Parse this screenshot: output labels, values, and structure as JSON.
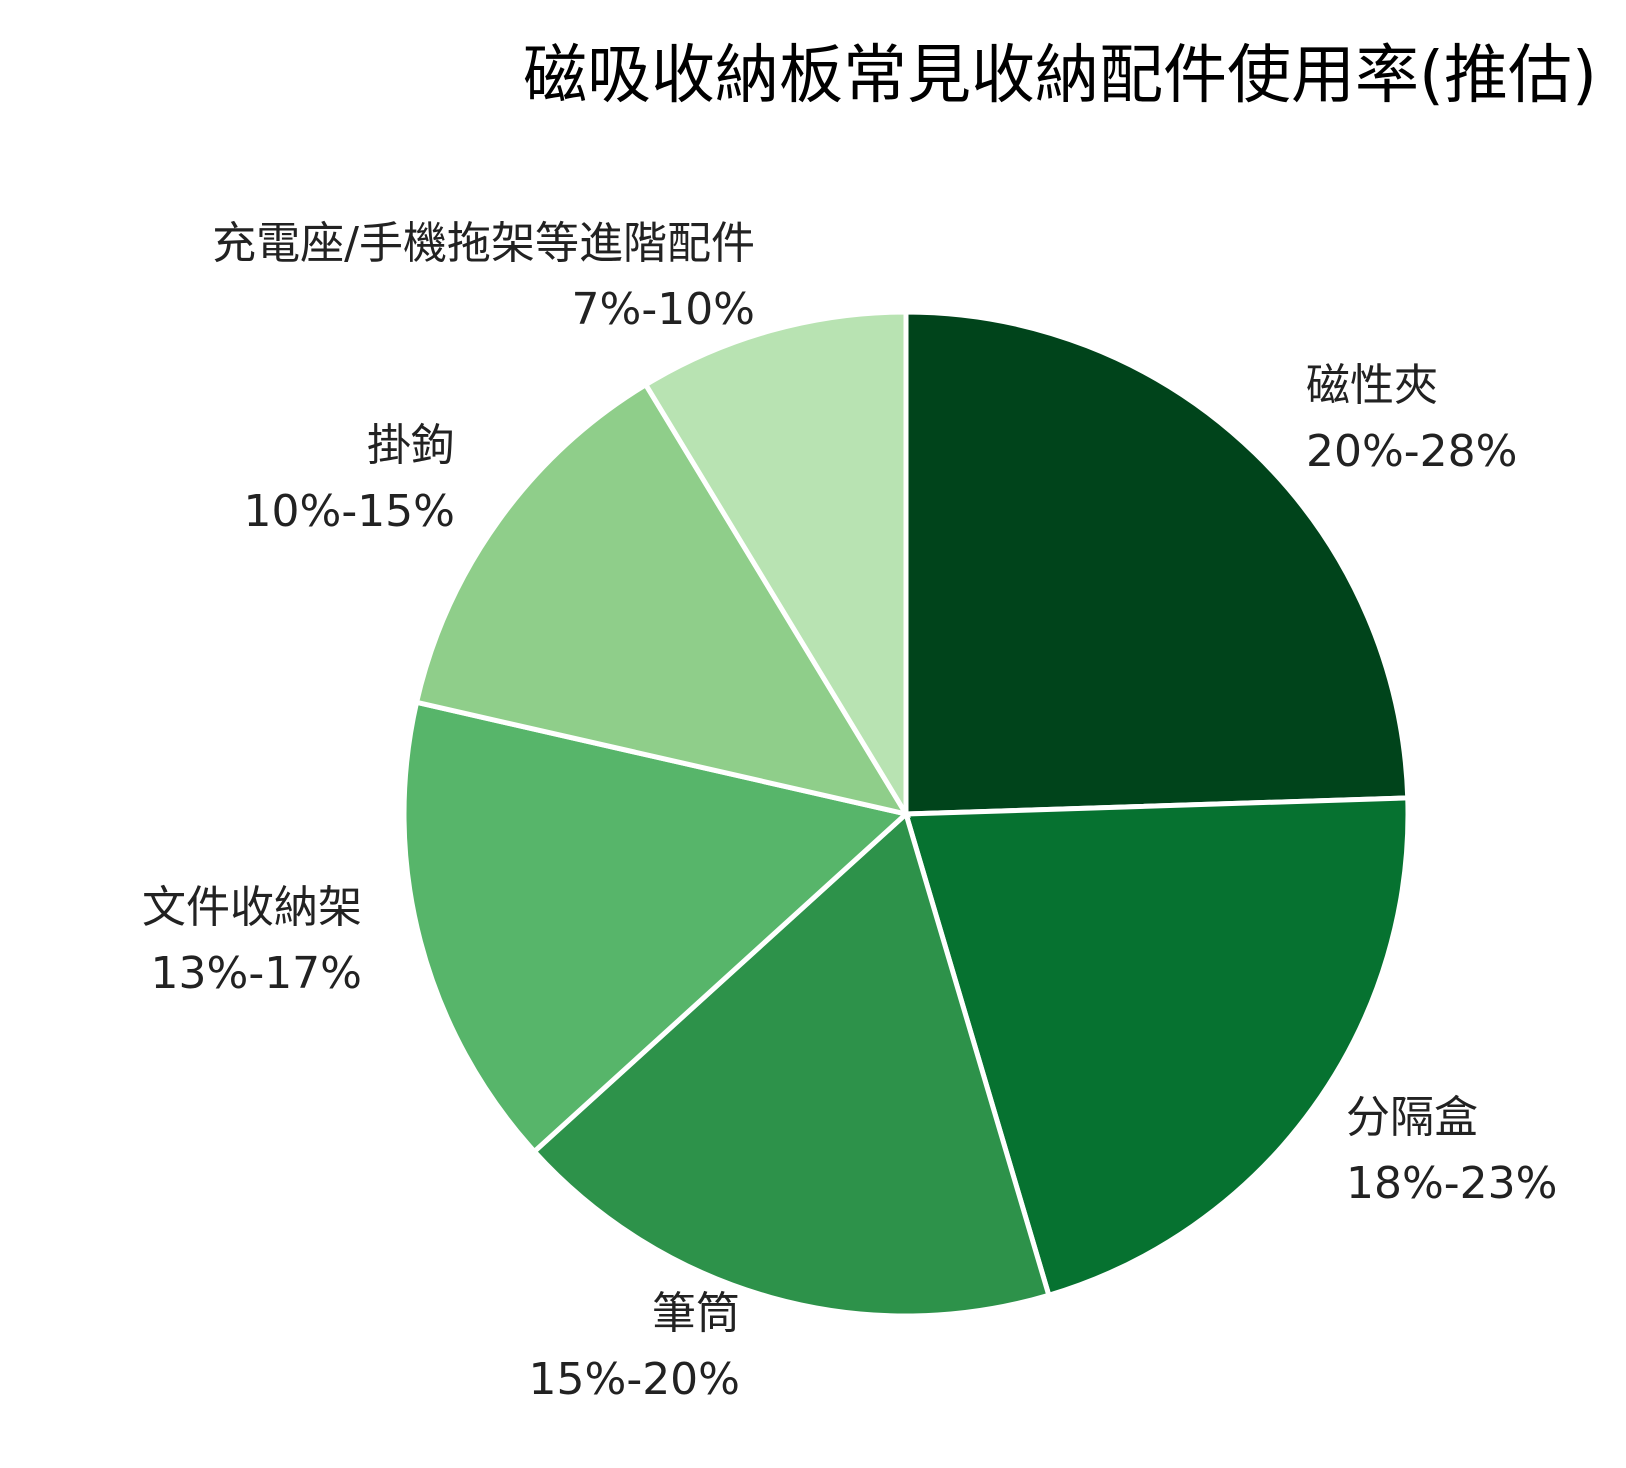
{
  "chart_data": {
    "type": "pie",
    "title": "磁吸收納板常見收納配件使用率(推估)",
    "slices": [
      {
        "name": "磁性夾",
        "range": "20%-28%",
        "value": 24,
        "color": "#00441b"
      },
      {
        "name": "分隔盒",
        "range": "18%-23%",
        "value": 20.5,
        "color": "#067230"
      },
      {
        "name": "筆筒",
        "range": "15%-20%",
        "value": 17.5,
        "color": "#2d924a"
      },
      {
        "name": "文件收納架",
        "range": "13%-17%",
        "value": 15,
        "color": "#57b56a"
      },
      {
        "name": "掛鉤",
        "range": "10%-15%",
        "value": 12.5,
        "color": "#8fce8a"
      },
      {
        "name": "充電座/手機拖架等進階配件",
        "range": "7%-10%",
        "value": 8.5,
        "color": "#b8e3b2"
      }
    ],
    "start_angle_deg": 0,
    "direction": "clockwise",
    "legend": "none"
  }
}
